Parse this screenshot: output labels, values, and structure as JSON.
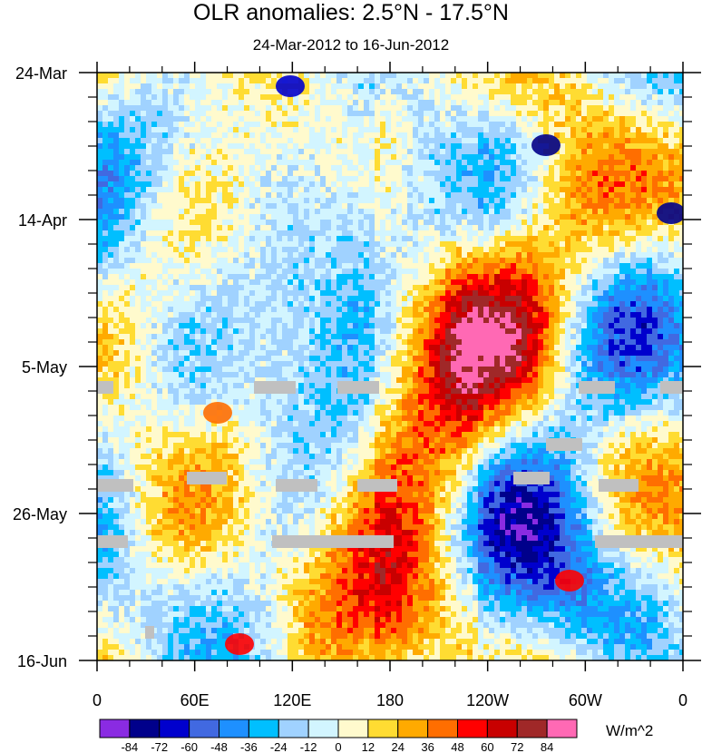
{
  "chart_data": {
    "type": "heatmap",
    "title": "OLR anomalies: 2.5°N - 17.5°N",
    "subtitle": "24-Mar-2012 to 16-Jun-2012",
    "x_ticks": [
      {
        "label": "0",
        "lon": 0
      },
      {
        "label": "60E",
        "lon": 60
      },
      {
        "label": "120E",
        "lon": 120
      },
      {
        "label": "180",
        "lon": 180
      },
      {
        "label": "120W",
        "lon": 240
      },
      {
        "label": "60W",
        "lon": 300
      },
      {
        "label": "0",
        "lon": 360
      }
    ],
    "x_range": [
      0,
      360
    ],
    "y_ticks": [
      {
        "label": "24-Mar",
        "day": 0
      },
      {
        "label": "14-Apr",
        "day": 21
      },
      {
        "label": "5-May",
        "day": 42
      },
      {
        "label": "26-May",
        "day": 63
      },
      {
        "label": "16-Jun",
        "day": 84
      }
    ],
    "y_range_days": [
      0,
      84
    ],
    "colorbar": {
      "units": "W/m^2",
      "levels": [
        "-84",
        "-72",
        "-60",
        "-48",
        "-36",
        "-24",
        "-12",
        "0",
        "12",
        "24",
        "36",
        "48",
        "60",
        "72",
        "84"
      ],
      "colors": [
        "#8a2be2",
        "#00008b",
        "#0000cd",
        "#4169e1",
        "#1e90ff",
        "#00bfff",
        "#a0d2ff",
        "#d2f5ff",
        "#fffacd",
        "#ffdc32",
        "#ffaa00",
        "#ff6e00",
        "#ff0000",
        "#c80000",
        "#a02828",
        "#ff69b4"
      ]
    },
    "missing_data_color": "#c0c0c0"
  }
}
